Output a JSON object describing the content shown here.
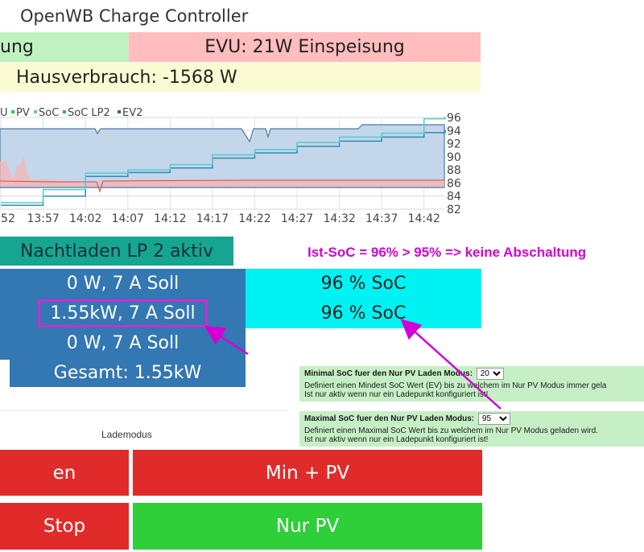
{
  "app": {
    "title": "OpenWB Charge Controller"
  },
  "status": {
    "pv_label": "ung",
    "evu_label": "EVU: 21W Einspeisung",
    "house_label": "Hausverbrauch: -1568 W"
  },
  "chart_data": {
    "type": "line",
    "legend": [
      "U",
      "PV",
      "SoC",
      "SoC LP2",
      "EV2"
    ],
    "legend_colors": [
      "#888888",
      "#33cc33",
      "#55cccc",
      "#3399cc",
      "#336699"
    ],
    "x_ticks": [
      "52",
      "13:57",
      "14:02",
      "14:07",
      "14:12",
      "14:17",
      "14:22",
      "14:27",
      "14:32",
      "14:37",
      "14:42"
    ],
    "y_ticks": [
      96,
      94,
      92,
      90,
      88,
      86,
      84,
      82
    ],
    "ylim": [
      82,
      96
    ],
    "grid": true,
    "series": [
      {
        "name": "SoC LP2",
        "color": "#3388bb",
        "x": [
          0,
          1,
          2,
          3,
          4,
          5,
          6,
          7,
          8,
          9,
          10,
          10.5
        ],
        "values": [
          82.6,
          84.0,
          87.0,
          87.6,
          88.3,
          89.8,
          90.6,
          91.6,
          92.4,
          93.0,
          93.7,
          94.0
        ]
      },
      {
        "name": "SoC",
        "color": "#55cccc",
        "x": [
          0,
          1,
          2,
          3,
          4,
          5,
          6,
          7,
          8,
          9,
          10,
          10.5
        ],
        "values": [
          83.0,
          85.0,
          87.5,
          88.0,
          88.8,
          90.3,
          91.1,
          92.2,
          93.0,
          93.6,
          95.8,
          96.0
        ]
      }
    ]
  },
  "lademodus": {
    "header": "Nachtladen LP 2 aktiv",
    "lp_rows": [
      "0 W, 7 A Soll",
      "1.55kW, 7 A Soll",
      "0 W, 7 A Soll",
      "Gesamt: 1.55kW"
    ],
    "soc_rows": [
      "96 % SoC",
      "96 % SoC"
    ],
    "annotation": "Ist-SoC = 96% > 95% => keine Abschaltung",
    "label": "Lademodus"
  },
  "settings": {
    "min_label": "Minimal SoC fuer den Nur PV Laden Modus:",
    "min_value": "20",
    "min_desc1": "Definiert einen Mindest SoC Wert (EV) bis zu welchem im Nur PV Modus immer gela",
    "min_desc2": "Ist nur aktiv wenn nur ein Ladepunkt konfiguriert ist!",
    "max_label": "Maximal SoC fuer den Nur PV Laden Modus:",
    "max_value": "95",
    "max_desc1": "Definiert einen Maximal SoC Wert bis zu welchem im Nur PV Modus geladen wird.",
    "max_desc2": "Ist nur aktiv wenn nur ein Ladepunkt konfiguriert ist!"
  },
  "buttons": {
    "sofort": "en",
    "minpv": "Min + PV",
    "stop": "Stop",
    "nurpv": "Nur PV"
  },
  "colors": {
    "accent_teal": "#16a591",
    "lp_blue": "#3377b3",
    "soc_cyan": "#00f2f2",
    "red": "#e12b2b",
    "green": "#2fcf3a",
    "annot": "#d500d5"
  }
}
